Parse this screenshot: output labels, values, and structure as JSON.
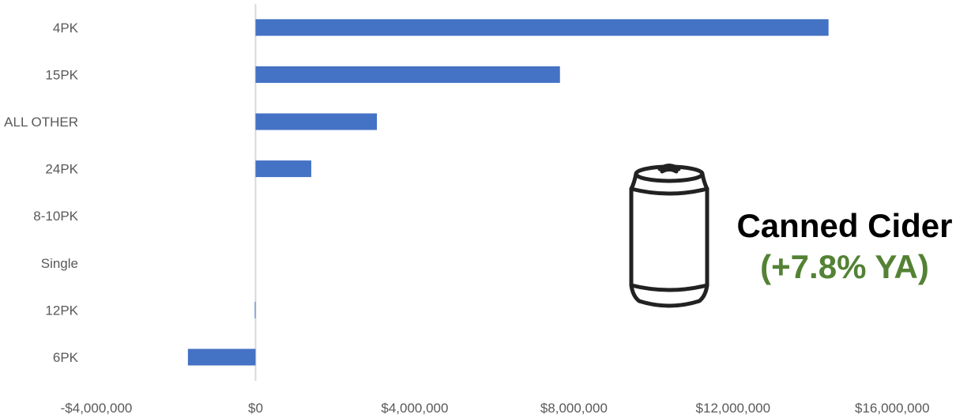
{
  "chart_data": {
    "type": "bar",
    "orientation": "horizontal",
    "categories": [
      "4PK",
      "15PK",
      "ALL OTHER",
      "24PK",
      "8-10PK",
      "Single",
      "12PK",
      "6PK"
    ],
    "values": [
      14400000,
      7650000,
      3050000,
      1400000,
      0,
      0,
      -20000,
      -1700000
    ],
    "xlim": [
      -4000000,
      18000000
    ],
    "xticks": [
      -4000000,
      0,
      4000000,
      8000000,
      12000000,
      16000000
    ],
    "xtick_labels": [
      "-$4,000,000",
      "$0",
      "$4,000,000",
      "$8,000,000",
      "$12,000,000",
      "$16,000,000"
    ],
    "title": "",
    "xlabel": "",
    "ylabel": "",
    "grid": false,
    "bar_color": "#4472C4",
    "zero_line_color": "#D9D9D9"
  },
  "annotation": {
    "title": "Canned Cider",
    "subtitle": "(+7.8% YA)",
    "subtitle_color": "#548235",
    "icon": "soda-can-icon"
  }
}
